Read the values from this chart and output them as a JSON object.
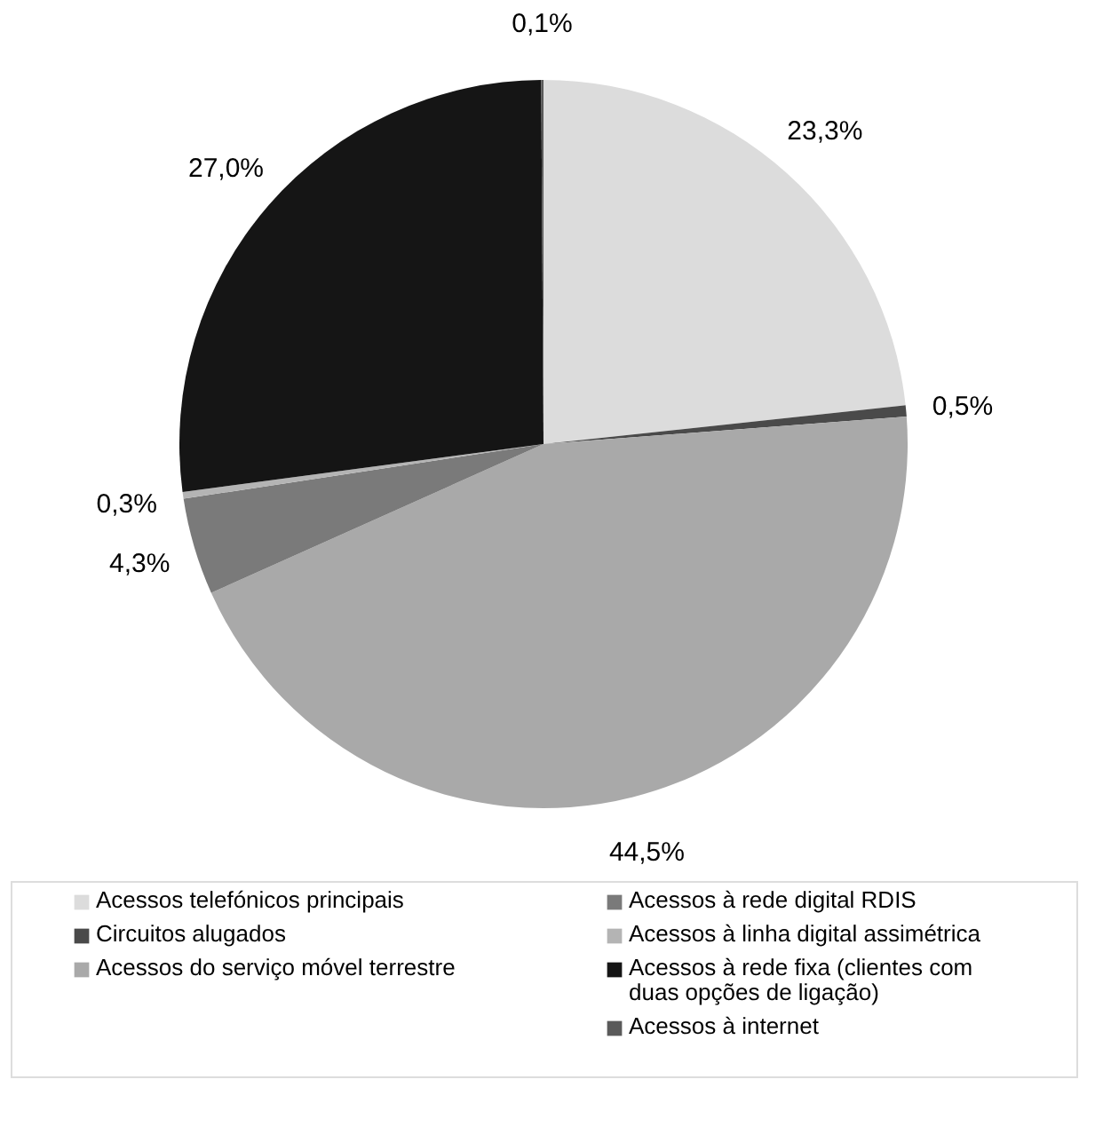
{
  "chart_data": {
    "type": "pie",
    "categories": [
      "Acessos telefónicos principais",
      "Circuitos alugados",
      "Acessos do serviço móvel terrestre",
      "Acessos à rede digital RDIS",
      "Acessos à linha digital assimétrica",
      "Acessos à rede fixa (clientes com duas opções de ligação)",
      "Acessos à internet"
    ],
    "values": [
      23.3,
      0.5,
      44.5,
      4.3,
      0.3,
      27.0,
      0.1
    ],
    "colors": [
      "#dcdcdc",
      "#4a4a4a",
      "#a9a9a9",
      "#7a7a7a",
      "#b4b4b4",
      "#151515",
      "#5a5a5a"
    ],
    "value_labels": [
      "23,3%",
      "0,5%",
      "44,5%",
      "4,3%",
      "0,3%",
      "27,0%",
      "0,1%"
    ],
    "legend": "bottom"
  }
}
